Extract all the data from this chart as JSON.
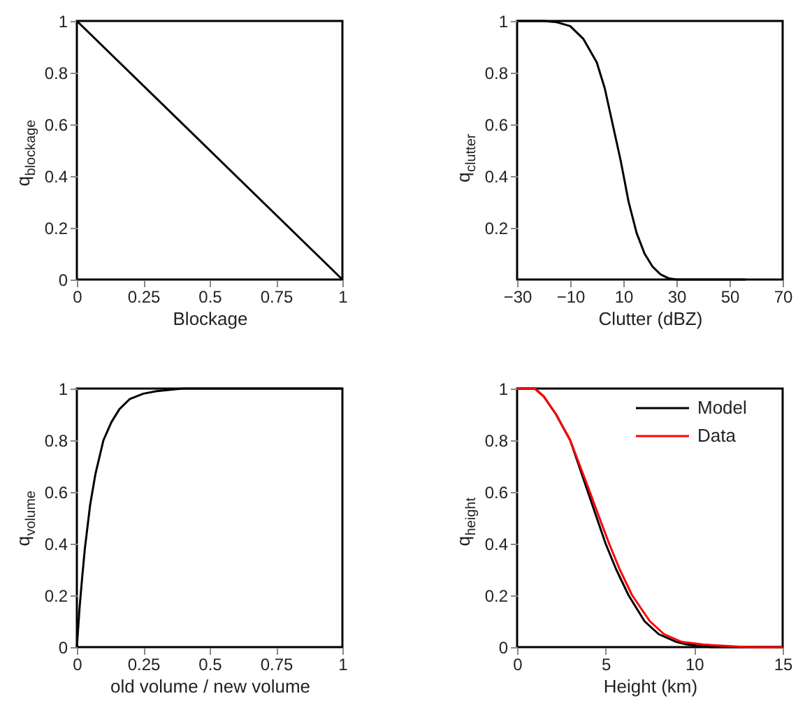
{
  "chart_data": [
    {
      "type": "line",
      "xlabel": "Blockage",
      "ylabel": "q$_{blockage}$",
      "xlim": [
        0,
        1
      ],
      "xticks": [
        0,
        0.25,
        0.5,
        0.75,
        1
      ],
      "ylim": [
        0,
        1
      ],
      "yticks": [
        0,
        0.2,
        0.4,
        0.6,
        0.8,
        1
      ],
      "grid": false,
      "series": [
        {
          "color": "#000000",
          "x": [
            0,
            1
          ],
          "values": [
            1,
            0
          ]
        }
      ]
    },
    {
      "type": "line",
      "xlabel": "Clutter (dBZ)",
      "ylabel": "q$_{clutter}$",
      "xlim": [
        -30,
        70
      ],
      "xticks": [
        {
          "value": -30,
          "label": "−30"
        },
        {
          "value": -10,
          "label": "−10"
        },
        10,
        30,
        50,
        70
      ],
      "ylim": [
        0,
        1
      ],
      "yticks": [
        0.2,
        0.4,
        0.6,
        0.8,
        1
      ],
      "grid": false,
      "series": [
        {
          "color": "#000000",
          "x": [
            -30,
            -20,
            -15,
            -10,
            -5,
            0,
            3,
            6,
            9,
            12,
            15,
            18,
            21,
            24,
            27,
            30,
            40,
            56
          ],
          "values": [
            1,
            1,
            0.995,
            0.98,
            0.93,
            0.84,
            0.74,
            0.6,
            0.46,
            0.3,
            0.18,
            0.1,
            0.05,
            0.02,
            0.005,
            0,
            0,
            0
          ]
        }
      ]
    },
    {
      "type": "line",
      "xlabel": "old volume / new volume",
      "ylabel": "q$_{volume}$",
      "xlim": [
        0,
        1
      ],
      "xticks": [
        0,
        0.25,
        0.5,
        0.75,
        1
      ],
      "ylim": [
        0,
        1
      ],
      "yticks": [
        0,
        0.2,
        0.4,
        0.6,
        0.8,
        1
      ],
      "grid": false,
      "series": [
        {
          "color": "#000000",
          "x": [
            0,
            0.01,
            0.02,
            0.03,
            0.05,
            0.07,
            0.1,
            0.13,
            0.16,
            0.2,
            0.25,
            0.3,
            0.4,
            0.6,
            1
          ],
          "values": [
            0,
            0.15,
            0.27,
            0.38,
            0.55,
            0.67,
            0.8,
            0.87,
            0.92,
            0.96,
            0.98,
            0.99,
            1,
            1,
            1
          ]
        }
      ]
    },
    {
      "type": "line",
      "xlabel": "Height (km)",
      "ylabel": "q$_{height}$",
      "xlim": [
        0,
        15
      ],
      "xticks": [
        0,
        5,
        10,
        15
      ],
      "ylim": [
        0,
        1
      ],
      "yticks": [
        0,
        0.2,
        0.4,
        0.6,
        0.8,
        1
      ],
      "grid": false,
      "legend": "top right",
      "series": [
        {
          "name": "Model",
          "color": "#000000",
          "x": [
            0,
            1,
            1.5,
            2.2,
            3,
            4,
            4.5,
            5,
            5.6,
            6.3,
            7.2,
            8,
            9,
            9.6,
            11,
            15
          ],
          "values": [
            1,
            1,
            0.97,
            0.9,
            0.8,
            0.6,
            0.5,
            0.4,
            0.3,
            0.2,
            0.1,
            0.05,
            0.02,
            0.01,
            0,
            0
          ]
        },
        {
          "name": "Data",
          "color": "#ff0000",
          "x": [
            0,
            1,
            1.5,
            2.2,
            3,
            4,
            4.65,
            5.2,
            5.8,
            6.5,
            7.5,
            8.3,
            9.3,
            10.5,
            13,
            15
          ],
          "values": [
            1,
            1,
            0.97,
            0.9,
            0.8,
            0.62,
            0.5,
            0.4,
            0.3,
            0.2,
            0.1,
            0.05,
            0.02,
            0.01,
            0,
            0
          ]
        }
      ]
    }
  ]
}
